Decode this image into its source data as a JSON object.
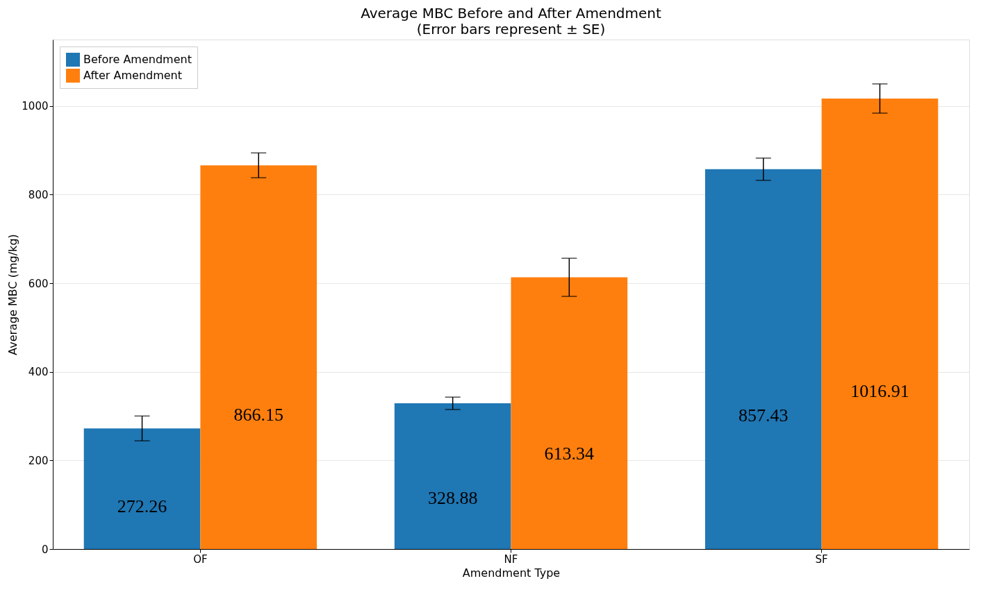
{
  "chart_data": {
    "type": "bar",
    "title": "Average MBC Before and After Amendment",
    "subtitle": "(Error bars represent ± SE)",
    "xlabel": "Amendment Type",
    "ylabel": "Average MBC (mg/kg)",
    "categories": [
      "OF",
      "NF",
      "SF"
    ],
    "series": [
      {
        "name": "Before Amendment",
        "color": "#1f77b4",
        "values": [
          272.26,
          328.88,
          857.43
        ],
        "errors": [
          28,
          14,
          25
        ]
      },
      {
        "name": "After Amendment",
        "color": "#ff7f0e",
        "values": [
          866.15,
          613.34,
          1016.91
        ],
        "errors": [
          28,
          43,
          33
        ]
      }
    ],
    "ylim": [
      0,
      1150
    ],
    "yticks": [
      0,
      200,
      400,
      600,
      800,
      1000
    ],
    "grid": "y",
    "legend": "top left",
    "data_labels": true
  }
}
